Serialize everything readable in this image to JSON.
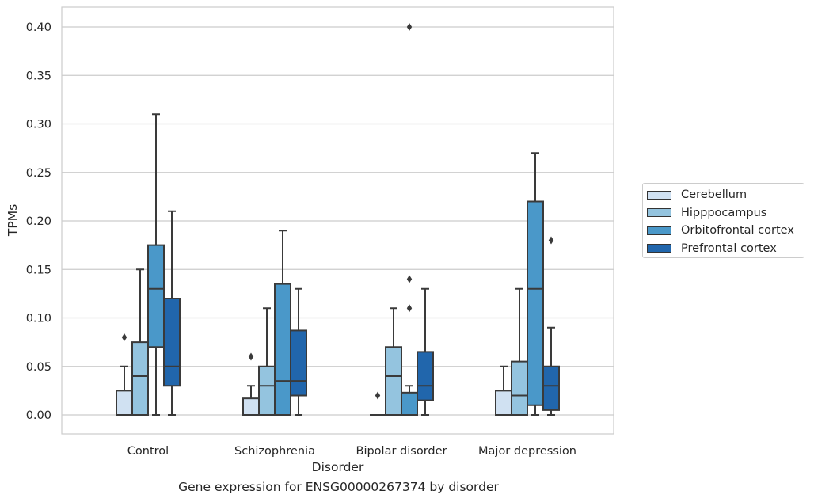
{
  "chart_data": {
    "type": "boxplot",
    "title": "",
    "caption": "Gene expression for ENSG00000267374 by disorder",
    "xlabel": "Disorder",
    "ylabel": "TPMs",
    "ylim": [
      -0.02,
      0.42
    ],
    "yticks": [
      "0.00",
      "0.05",
      "0.10",
      "0.15",
      "0.20",
      "0.25",
      "0.30",
      "0.35",
      "0.40"
    ],
    "grid": "horizontal",
    "legend_position": "right",
    "categories": [
      "Control",
      "Schizophrenia",
      "Bipolar disorder",
      "Major depression"
    ],
    "series": [
      {
        "name": "Cerebellum",
        "color": "#d0e1f2",
        "boxes": [
          {
            "whislo": 0.0,
            "q1": 0.0,
            "med": 0.0,
            "q3": 0.025,
            "whishi": 0.05,
            "fliers": [
              0.08
            ]
          },
          {
            "whislo": 0.0,
            "q1": 0.0,
            "med": 0.0,
            "q3": 0.017,
            "whishi": 0.03,
            "fliers": [
              0.06
            ]
          },
          {
            "whislo": 0.0,
            "q1": 0.0,
            "med": 0.0,
            "q3": 0.0,
            "whishi": 0.0,
            "fliers": [
              0.02
            ]
          },
          {
            "whislo": 0.0,
            "q1": 0.0,
            "med": 0.0,
            "q3": 0.025,
            "whishi": 0.05,
            "fliers": []
          }
        ]
      },
      {
        "name": "Hipppocampus",
        "color": "#94c4df",
        "boxes": [
          {
            "whislo": 0.0,
            "q1": 0.0,
            "med": 0.04,
            "q3": 0.075,
            "whishi": 0.15,
            "fliers": []
          },
          {
            "whislo": 0.0,
            "q1": 0.0,
            "med": 0.03,
            "q3": 0.05,
            "whishi": 0.11,
            "fliers": []
          },
          {
            "whislo": 0.0,
            "q1": 0.0,
            "med": 0.04,
            "q3": 0.07,
            "whishi": 0.11,
            "fliers": []
          },
          {
            "whislo": 0.0,
            "q1": 0.0,
            "med": 0.02,
            "q3": 0.055,
            "whishi": 0.13,
            "fliers": []
          }
        ]
      },
      {
        "name": "Orbitofrontal cortex",
        "color": "#4a98c9",
        "boxes": [
          {
            "whislo": 0.0,
            "q1": 0.07,
            "med": 0.13,
            "q3": 0.175,
            "whishi": 0.31,
            "fliers": []
          },
          {
            "whislo": 0.0,
            "q1": 0.0,
            "med": 0.035,
            "q3": 0.135,
            "whishi": 0.19,
            "fliers": []
          },
          {
            "whislo": 0.0,
            "q1": 0.0,
            "med": 0.0,
            "q3": 0.023,
            "whishi": 0.03,
            "fliers": [
              0.11,
              0.14,
              0.4
            ]
          },
          {
            "whislo": 0.0,
            "q1": 0.01,
            "med": 0.13,
            "q3": 0.22,
            "whishi": 0.27,
            "fliers": []
          }
        ]
      },
      {
        "name": "Prefrontal cortex",
        "color": "#2166ac",
        "boxes": [
          {
            "whislo": 0.0,
            "q1": 0.03,
            "med": 0.05,
            "q3": 0.12,
            "whishi": 0.21,
            "fliers": []
          },
          {
            "whislo": 0.0,
            "q1": 0.02,
            "med": 0.035,
            "q3": 0.087,
            "whishi": 0.13,
            "fliers": []
          },
          {
            "whislo": 0.0,
            "q1": 0.015,
            "med": 0.03,
            "q3": 0.065,
            "whishi": 0.13,
            "fliers": []
          },
          {
            "whislo": 0.0,
            "q1": 0.005,
            "med": 0.03,
            "q3": 0.05,
            "whishi": 0.09,
            "fliers": [
              0.18
            ]
          }
        ]
      }
    ]
  }
}
